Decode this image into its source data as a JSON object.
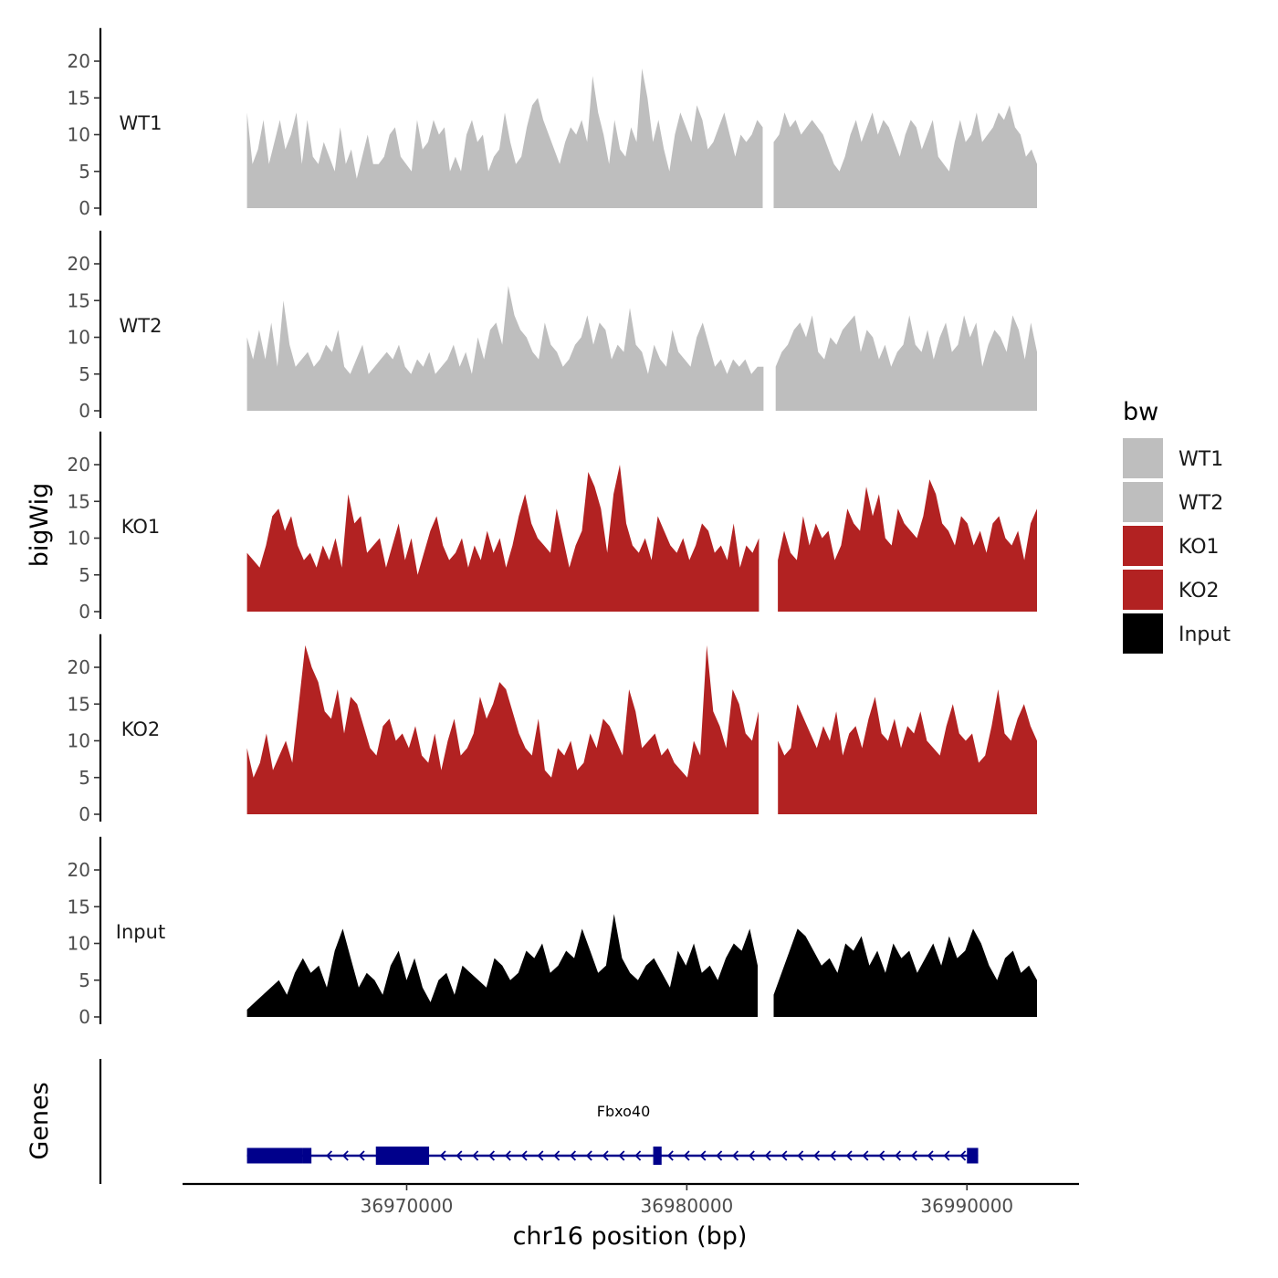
{
  "chart_data": {
    "type": "area",
    "chromosome": "chr16",
    "xlabel": "chr16 position (bp)",
    "ylabel": "bigWig",
    "genes_label": "Genes",
    "x_range": [
      36964300,
      36992500
    ],
    "xlim": [
      36962000,
      36994000
    ],
    "x_ticks": [
      {
        "value": 36970000,
        "label": "36970000"
      },
      {
        "value": 36980000,
        "label": "36980000"
      },
      {
        "value": 36990000,
        "label": "36990000"
      }
    ],
    "ylim": [
      0,
      24
    ],
    "y_ticks": [
      {
        "value": 0,
        "label": "0"
      },
      {
        "value": 5,
        "label": "5"
      },
      {
        "value": 10,
        "label": "10"
      },
      {
        "value": 15,
        "label": "15"
      },
      {
        "value": 20,
        "label": "20"
      }
    ],
    "legend": {
      "title": "bw",
      "entries": [
        {
          "label": "WT1",
          "color": "#bebebe"
        },
        {
          "label": "WT2",
          "color": "#bebebe"
        },
        {
          "label": "KO1",
          "color": "#b22222"
        },
        {
          "label": "KO2",
          "color": "#b22222"
        },
        {
          "label": "Input",
          "color": "#000000"
        }
      ]
    },
    "series": [
      {
        "name": "WT1",
        "color": "#bebebe",
        "gap_at": 36982900,
        "values": [
          13,
          6,
          8,
          12,
          6,
          9,
          12,
          8,
          10,
          13,
          6,
          12,
          7,
          6,
          9,
          7,
          5,
          11,
          6,
          8,
          4,
          7,
          10,
          6,
          6,
          7,
          10,
          11,
          7,
          6,
          5,
          12,
          8,
          9,
          12,
          10,
          11,
          5,
          7,
          5,
          10,
          12,
          9,
          10,
          5,
          7,
          8,
          13,
          9,
          6,
          7,
          11,
          14,
          15,
          12,
          10,
          8,
          6,
          9,
          11,
          10,
          12,
          9,
          18,
          13,
          10,
          6,
          12,
          8,
          7,
          11,
          9,
          19,
          15,
          9,
          12,
          8,
          5,
          10,
          13,
          11,
          9,
          14,
          12,
          8,
          9,
          11,
          13,
          10,
          7,
          10,
          9,
          10,
          12,
          11,
          8,
          9,
          10,
          13,
          11,
          12,
          10,
          11,
          12,
          11,
          10,
          8,
          6,
          5,
          7,
          10,
          12,
          9,
          11,
          13,
          10,
          12,
          11,
          9,
          7,
          10,
          12,
          11,
          8,
          10,
          12,
          7,
          6,
          5,
          9,
          12,
          9,
          10,
          13,
          9,
          10,
          11,
          13,
          12,
          14,
          11,
          10,
          7,
          8,
          6
        ]
      },
      {
        "name": "WT2",
        "color": "#bebebe",
        "gap_at": 36982900,
        "values": [
          10,
          7,
          11,
          7,
          12,
          6,
          15,
          9,
          6,
          7,
          8,
          6,
          7,
          9,
          8,
          11,
          6,
          5,
          7,
          9,
          5,
          6,
          7,
          8,
          7,
          9,
          6,
          5,
          7,
          6,
          8,
          5,
          6,
          7,
          9,
          6,
          8,
          5,
          10,
          7,
          11,
          12,
          9,
          17,
          13,
          11,
          10,
          8,
          7,
          12,
          9,
          8,
          6,
          7,
          9,
          10,
          13,
          9,
          12,
          11,
          7,
          9,
          8,
          14,
          9,
          8,
          5,
          9,
          7,
          6,
          11,
          8,
          7,
          6,
          10,
          12,
          9,
          6,
          7,
          5,
          7,
          6,
          7,
          5,
          6,
          6,
          4,
          6,
          8,
          9,
          11,
          12,
          10,
          13,
          8,
          7,
          10,
          9,
          11,
          12,
          13,
          8,
          11,
          10,
          7,
          9,
          6,
          8,
          9,
          13,
          9,
          8,
          11,
          7,
          10,
          12,
          8,
          9,
          13,
          10,
          12,
          6,
          9,
          11,
          10,
          8,
          13,
          11,
          7,
          12,
          8
        ]
      },
      {
        "name": "KO1",
        "color": "#b22222",
        "gap_at": 36982900,
        "values": [
          8,
          7,
          6,
          9,
          13,
          14,
          11,
          13,
          9,
          7,
          8,
          6,
          9,
          7,
          10,
          6,
          16,
          12,
          13,
          8,
          9,
          10,
          6,
          9,
          12,
          7,
          10,
          5,
          8,
          11,
          13,
          9,
          7,
          8,
          10,
          6,
          9,
          7,
          11,
          8,
          10,
          6,
          9,
          13,
          16,
          12,
          10,
          9,
          8,
          14,
          10,
          6,
          9,
          11,
          19,
          17,
          14,
          8,
          16,
          20,
          12,
          9,
          8,
          10,
          7,
          13,
          11,
          9,
          8,
          10,
          7,
          9,
          12,
          11,
          8,
          9,
          7,
          12,
          6,
          9,
          8,
          10,
          13,
          9,
          7,
          11,
          8,
          7,
          13,
          9,
          12,
          10,
          11,
          7,
          9,
          14,
          12,
          11,
          17,
          13,
          16,
          10,
          9,
          14,
          12,
          11,
          10,
          13,
          18,
          16,
          12,
          11,
          9,
          13,
          12,
          9,
          11,
          8,
          12,
          13,
          10,
          9,
          11,
          7,
          12,
          14
        ]
      },
      {
        "name": "KO2",
        "color": "#b22222",
        "gap_at": 36982900,
        "values": [
          9,
          5,
          7,
          11,
          6,
          8,
          10,
          7,
          15,
          23,
          20,
          18,
          14,
          13,
          17,
          11,
          16,
          15,
          12,
          9,
          8,
          12,
          13,
          10,
          11,
          9,
          12,
          8,
          7,
          11,
          6,
          10,
          13,
          8,
          9,
          11,
          16,
          13,
          15,
          18,
          17,
          14,
          11,
          9,
          8,
          13,
          6,
          5,
          9,
          8,
          10,
          6,
          7,
          11,
          9,
          13,
          12,
          10,
          8,
          17,
          14,
          9,
          10,
          11,
          8,
          9,
          7,
          6,
          5,
          10,
          8,
          23,
          14,
          12,
          9,
          17,
          15,
          11,
          10,
          14,
          13,
          9,
          10,
          8,
          9,
          15,
          13,
          11,
          9,
          12,
          10,
          14,
          8,
          11,
          12,
          9,
          13,
          16,
          11,
          10,
          13,
          9,
          12,
          11,
          14,
          10,
          9,
          8,
          12,
          15,
          11,
          10,
          11,
          7,
          8,
          12,
          17,
          11,
          10,
          13,
          15,
          12,
          10
        ]
      },
      {
        "name": "Input",
        "color": "#000000",
        "gap_at": 36982900,
        "values": [
          1,
          2,
          3,
          4,
          5,
          3,
          6,
          8,
          6,
          7,
          4,
          9,
          12,
          8,
          4,
          6,
          5,
          3,
          7,
          9,
          5,
          8,
          4,
          2,
          5,
          6,
          3,
          7,
          6,
          5,
          4,
          8,
          7,
          5,
          6,
          9,
          8,
          10,
          6,
          7,
          9,
          8,
          12,
          9,
          6,
          7,
          14,
          8,
          6,
          5,
          7,
          8,
          6,
          4,
          9,
          7,
          10,
          6,
          7,
          5,
          8,
          10,
          9,
          12,
          7,
          6,
          3,
          6,
          9,
          12,
          11,
          9,
          7,
          8,
          6,
          10,
          9,
          11,
          7,
          9,
          6,
          10,
          8,
          9,
          6,
          8,
          10,
          7,
          11,
          8,
          9,
          12,
          10,
          7,
          5,
          8,
          9,
          6,
          7,
          5
        ]
      }
    ],
    "gene": {
      "name": "Fbxo40",
      "strand": "-",
      "color": "#00008b",
      "start": 36964300,
      "end": 36990400,
      "exons": [
        {
          "start": 36964300,
          "end": 36966300,
          "kind": "utr"
        },
        {
          "start": 36966300,
          "end": 36966600,
          "kind": "utr"
        },
        {
          "start": 36968900,
          "end": 36970800,
          "kind": "coding"
        },
        {
          "start": 36978800,
          "end": 36979100,
          "kind": "coding"
        },
        {
          "start": 36990000,
          "end": 36990400,
          "kind": "utr"
        }
      ]
    }
  }
}
